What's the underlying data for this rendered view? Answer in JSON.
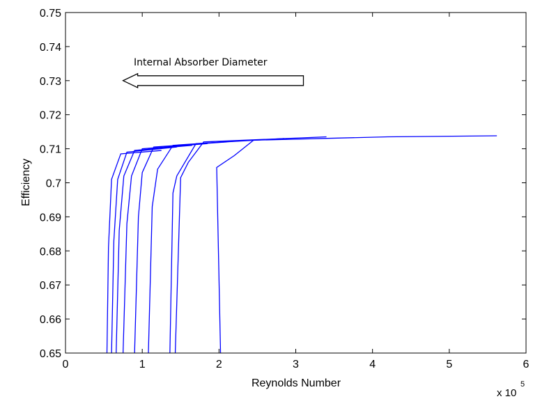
{
  "chart_data": {
    "type": "line",
    "title": "",
    "xlabel": "Reynolds Number",
    "ylabel": "Efficiency",
    "x_multiplier_label": "x 10",
    "x_multiplier_exponent": "5",
    "xlim": [
      0,
      6
    ],
    "ylim": [
      0.65,
      0.75
    ],
    "xticks": [
      0,
      1,
      2,
      3,
      4,
      5,
      6
    ],
    "xtick_labels": [
      "0",
      "1",
      "2",
      "3",
      "4",
      "5",
      "6"
    ],
    "yticks": [
      0.65,
      0.66,
      0.67,
      0.68,
      0.69,
      0.7,
      0.71,
      0.72,
      0.73,
      0.74,
      0.75
    ],
    "ytick_labels": [
      "0.65",
      "0.66",
      "0.67",
      "0.68",
      "0.69",
      "0.7",
      "0.71",
      "0.72",
      "0.73",
      "0.74",
      "0.75"
    ],
    "grid": false,
    "line_color": "#0000ff",
    "annotation": {
      "text": "Internal Absorber Diameter",
      "arrow_from": [
        3.1,
        0.73
      ],
      "arrow_to": [
        0.75,
        0.73
      ],
      "direction": "left"
    },
    "series": [
      {
        "x": [
          0.54,
          0.56,
          0.6,
          0.72,
          1.25
        ],
        "y": [
          0.65,
          0.681,
          0.701,
          0.7085,
          0.7095
        ]
      },
      {
        "x": [
          0.6,
          0.63,
          0.68,
          0.8,
          1.45
        ],
        "y": [
          0.65,
          0.683,
          0.701,
          0.709,
          0.7105
        ]
      },
      {
        "x": [
          0.66,
          0.7,
          0.76,
          0.9,
          1.65
        ],
        "y": [
          0.65,
          0.686,
          0.702,
          0.7095,
          0.711
        ]
      },
      {
        "x": [
          0.75,
          0.8,
          0.86,
          1.0,
          1.85
        ],
        "y": [
          0.65,
          0.688,
          0.702,
          0.71,
          0.7115
        ]
      },
      {
        "x": [
          0.9,
          0.95,
          1.0,
          1.15,
          2.1
        ],
        "y": [
          0.65,
          0.69,
          0.703,
          0.7105,
          0.712
        ]
      },
      {
        "x": [
          1.08,
          1.13,
          1.2,
          1.4,
          2.4
        ],
        "y": [
          0.65,
          0.693,
          0.704,
          0.711,
          0.7125
        ]
      },
      {
        "x": [
          1.36,
          1.4,
          1.45,
          1.7,
          2.85
        ],
        "y": [
          0.65,
          0.697,
          0.702,
          0.7115,
          0.713
        ]
      },
      {
        "x": [
          1.43,
          1.5,
          1.6,
          1.8,
          3.4
        ],
        "y": [
          0.65,
          0.7015,
          0.706,
          0.712,
          0.7135
        ]
      },
      {
        "x": [
          2.02,
          1.97,
          2.2,
          2.45,
          4.2,
          5.62
        ],
        "y": [
          0.65,
          0.7045,
          0.708,
          0.7125,
          0.7135,
          0.7138
        ]
      }
    ]
  }
}
